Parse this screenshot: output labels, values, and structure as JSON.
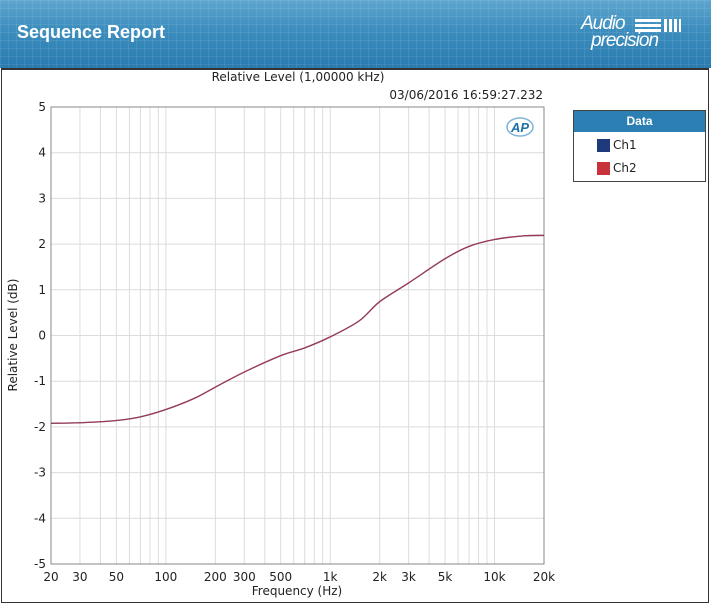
{
  "header": {
    "title": "Sequence Report",
    "logo_line1": "Audio",
    "logo_line2": "precision"
  },
  "chart": {
    "title": "Relative Level (1,00000 kHz)",
    "timestamp": "03/06/2016 16:59:27.232",
    "xlabel": "Frequency (Hz)",
    "ylabel": "Relative Level (dB)",
    "watermark": "AP"
  },
  "legend": {
    "title": "Data",
    "items": [
      {
        "label": "Ch1",
        "color": "#1f3a7a"
      },
      {
        "label": "Ch2",
        "color": "#c8323a"
      }
    ]
  },
  "chart_data": {
    "type": "line",
    "title": "Relative Level (1,00000 kHz)",
    "xlabel": "Frequency (Hz)",
    "ylabel": "Relative Level (dB)",
    "xscale": "log",
    "xlim": [
      20,
      20000
    ],
    "ylim": [
      -5,
      5
    ],
    "x_ticks": [
      20,
      30,
      50,
      100,
      200,
      300,
      500,
      1000,
      2000,
      3000,
      5000,
      10000,
      20000
    ],
    "x_tick_labels": [
      "20",
      "30",
      "50",
      "100",
      "200",
      "300",
      "500",
      "1k",
      "2k",
      "3k",
      "5k",
      "10k",
      "20k"
    ],
    "y_ticks": [
      -5,
      -4,
      -3,
      -2,
      -1,
      0,
      1,
      2,
      3,
      4,
      5
    ],
    "grid": true,
    "legend_position": "right",
    "x": [
      20,
      30,
      50,
      70,
      100,
      150,
      200,
      300,
      500,
      700,
      1000,
      1500,
      2000,
      3000,
      5000,
      7000,
      10000,
      15000,
      20000
    ],
    "series": [
      {
        "name": "Ch1",
        "color": "#1f3a7a",
        "values": [
          -1.92,
          -1.91,
          -1.86,
          -1.78,
          -1.62,
          -1.37,
          -1.13,
          -0.8,
          -0.44,
          -0.27,
          -0.03,
          0.32,
          0.74,
          1.15,
          1.68,
          1.95,
          2.1,
          2.18,
          2.19
        ]
      },
      {
        "name": "Ch2",
        "color": "#c8323a",
        "values": [
          -1.92,
          -1.91,
          -1.86,
          -1.78,
          -1.62,
          -1.37,
          -1.13,
          -0.8,
          -0.44,
          -0.27,
          -0.03,
          0.32,
          0.74,
          1.15,
          1.68,
          1.95,
          2.1,
          2.18,
          2.19
        ]
      }
    ]
  }
}
